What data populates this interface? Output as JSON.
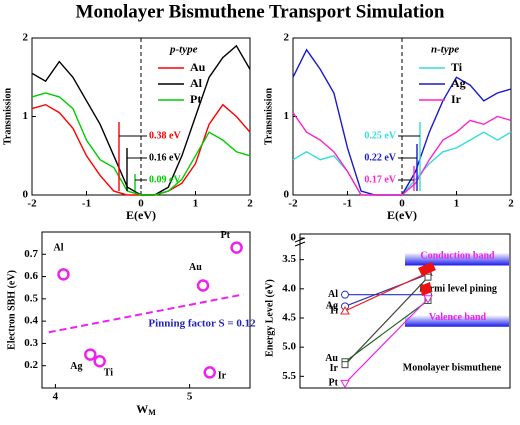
{
  "title": "Monolayer Bismuthene Transport Simulation",
  "chart_data": [
    {
      "type": "line",
      "ylabel": "Transmission",
      "xlabel": "E(eV)",
      "legend_title": "p-type",
      "x": [
        -2,
        -1.75,
        -1.5,
        -1.25,
        -1,
        -0.75,
        -0.5,
        -0.25,
        0,
        0.25,
        0.5,
        0.75,
        1,
        1.25,
        1.5,
        1.75,
        2
      ],
      "series": [
        {
          "name": "Au",
          "color": "#ff0000",
          "values": [
            1.1,
            1.15,
            1.05,
            0.85,
            0.5,
            0.25,
            0.05,
            0,
            0,
            0,
            0.05,
            0.15,
            0.4,
            0.9,
            1.15,
            1.0,
            0.8
          ]
        },
        {
          "name": "Al",
          "color": "#000000",
          "values": [
            1.55,
            1.45,
            1.7,
            1.5,
            1.2,
            0.9,
            0.5,
            0.1,
            0,
            0,
            0.1,
            0.5,
            1.0,
            1.5,
            1.75,
            1.9,
            1.6
          ]
        },
        {
          "name": "Pt",
          "color": "#00cc00",
          "values": [
            1.25,
            1.3,
            1.25,
            1.1,
            0.7,
            0.45,
            0.35,
            0.05,
            0,
            0,
            0.05,
            0.2,
            0.5,
            0.8,
            0.7,
            0.55,
            0.5
          ]
        }
      ],
      "annotations": [
        {
          "text": "0.38 eV",
          "color": "#ff0000"
        },
        {
          "text": "0.16 eV",
          "color": "#000000"
        },
        {
          "text": "0.09 eV",
          "color": "#00cc00"
        }
      ],
      "xlim": [
        -2,
        2
      ],
      "xticks": [
        -2,
        -1,
        0,
        1,
        2
      ],
      "ylim": [
        0,
        2
      ],
      "yticks": [
        0,
        1,
        2
      ],
      "vline_x": 0
    },
    {
      "type": "line",
      "ylabel": "Transmission",
      "xlabel": "E(eV)",
      "legend_title": "n-type",
      "x": [
        -2,
        -1.75,
        -1.5,
        -1.25,
        -1,
        -0.75,
        -0.5,
        -0.25,
        0,
        0.25,
        0.5,
        0.75,
        1,
        1.25,
        1.5,
        1.75,
        2
      ],
      "series": [
        {
          "name": "Ti",
          "color": "#33dddd",
          "values": [
            0.45,
            0.55,
            0.45,
            0.5,
            0.3,
            0,
            0,
            0,
            0,
            0.2,
            0.4,
            0.55,
            0.6,
            0.7,
            0.8,
            0.7,
            0.8
          ]
        },
        {
          "name": "Ag",
          "color": "#1a1acc",
          "values": [
            1.5,
            1.85,
            1.6,
            1.3,
            0.6,
            0.05,
            0,
            0,
            0,
            0.3,
            0.8,
            1.2,
            1.5,
            1.4,
            1.2,
            1.3,
            1.35
          ]
        },
        {
          "name": "Ir",
          "color": "#ff22cc",
          "values": [
            1.05,
            0.8,
            0.7,
            0.55,
            0.3,
            0,
            0,
            0,
            0,
            0.15,
            0.45,
            0.7,
            0.8,
            0.95,
            0.9,
            1.0,
            0.95
          ]
        }
      ],
      "annotations": [
        {
          "text": "0.25 eV",
          "color": "#33dddd"
        },
        {
          "text": "0.22 eV",
          "color": "#1a1acc"
        },
        {
          "text": "0.17 eV",
          "color": "#ff22cc"
        }
      ],
      "xlim": [
        -2,
        2
      ],
      "xticks": [
        -2,
        -1,
        0,
        1,
        2
      ],
      "ylim": [
        0,
        2
      ],
      "yticks": [
        0,
        1,
        2
      ],
      "vline_x": 0
    },
    {
      "type": "scatter",
      "ylabel": "Electron SBH (eV)",
      "xlabel": "W",
      "xlabel_sub": "M",
      "color": "#ee22ee",
      "labels": [
        "Al",
        "Ag",
        "Ti",
        "Au",
        "Ir",
        "Pt"
      ],
      "x": [
        4.06,
        4.26,
        4.33,
        5.1,
        5.15,
        5.35
      ],
      "values": [
        0.61,
        0.25,
        0.22,
        0.56,
        0.17,
        0.73
      ],
      "fit": {
        "x": [
          3.95,
          5.4
        ],
        "y": [
          0.35,
          0.52
        ],
        "label": "Pinning factor S = 0.12"
      },
      "xlim": [
        3.9,
        5.45
      ],
      "xticks": [
        4,
        5
      ],
      "ylim": [
        0.1,
        0.8
      ],
      "yticks": [
        0.2,
        0.3,
        0.4,
        0.5,
        0.6,
        0.7
      ]
    },
    {
      "type": "energy_level",
      "ylabel": "Energy Level (eV)",
      "metals": [
        "Al",
        "Ag",
        "Ti",
        "Au",
        "Ir",
        "Pt"
      ],
      "colors": [
        "#2233cc",
        "#3333aa",
        "#ee2222",
        "#226622",
        "#444444",
        "#ee22ee"
      ],
      "markers": [
        "circle",
        "circle",
        "triangle",
        "square",
        "square",
        "triangle-down"
      ],
      "work_function": [
        4.1,
        4.3,
        4.38,
        5.25,
        5.3,
        5.62
      ],
      "pinned": [
        4.1,
        3.75,
        3.72,
        4.2,
        3.8,
        4.17
      ],
      "conduction_band": [
        3.38,
        3.6
      ],
      "valence_band": [
        4.45,
        4.65
      ],
      "texts": {
        "conduction": "Conduction band",
        "fermi": "Fermi level pining",
        "valence": "Valence band",
        "material": "Monolayer bismuthene"
      },
      "top_tick": 0,
      "ylim": [
        3.3,
        5.7
      ],
      "yticks": [
        3.5,
        {
          "value": 4.0,
          "label": "4.0"
        },
        4.5,
        {
          "value": 5.0,
          "label": "5.0"
        },
        5.5
      ]
    }
  ]
}
